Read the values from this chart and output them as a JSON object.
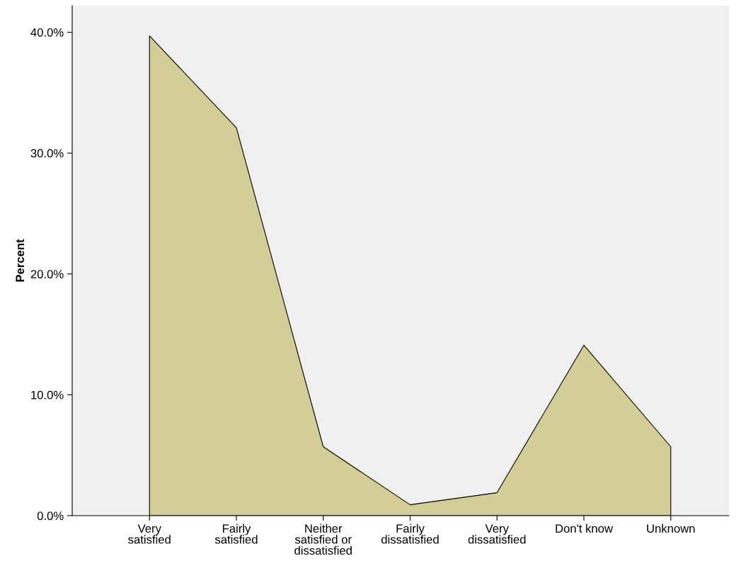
{
  "chart_data": {
    "type": "area",
    "ylabel": "Percent",
    "categories": [
      "Very\nsatisfied",
      "Fairly\nsatisfied",
      "Neither\nsatisfied or\ndissatisfied",
      "Fairly\ndissatisfied",
      "Very\ndissatisfied",
      "Don't know",
      "Unknown"
    ],
    "series": [
      {
        "color": "#d3ce98",
        "values": [
          39.7,
          32.1,
          5.7,
          0.9,
          1.9,
          14.1,
          5.7
        ]
      }
    ],
    "ylim": [
      0,
      42.2
    ],
    "yticks": [
      {
        "value": 0,
        "label": "0.0%"
      },
      {
        "value": 10,
        "label": "10.0%"
      },
      {
        "value": 20,
        "label": "20.0%"
      },
      {
        "value": 30,
        "label": "30.0%"
      },
      {
        "value": 40,
        "label": "40.0%"
      }
    ],
    "grid": false
  }
}
